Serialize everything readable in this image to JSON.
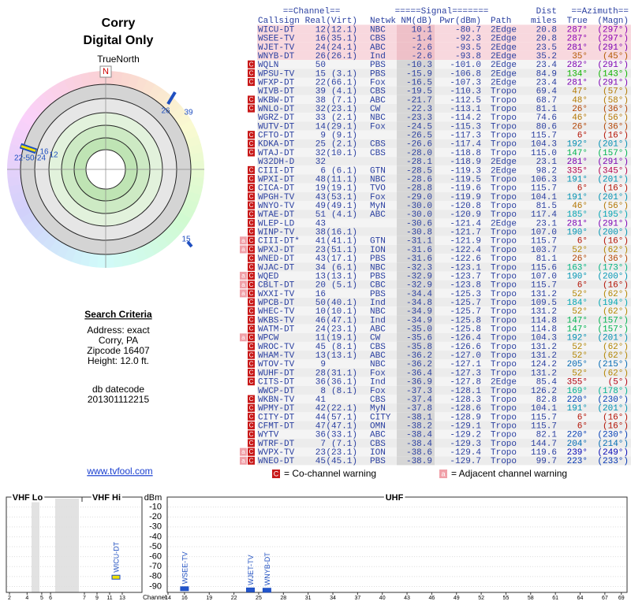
{
  "header": {
    "title": "Corry",
    "subtitle": "Digital Only"
  },
  "polar": {
    "north": "N",
    "true_north": "TrueNorth",
    "labels": [
      "26",
      "39",
      "22-50-24",
      "16",
      "12",
      "15"
    ]
  },
  "criteria": {
    "heading": "Search Criteria",
    "lines": [
      "Address: exact",
      "Corry, PA",
      "Zipcode 16407",
      "Height: 12.0 ft."
    ],
    "datecode_label": "db datecode",
    "datecode": "201301112215"
  },
  "link": "www.tvfool.com",
  "table": {
    "groups": [
      "==Channel==",
      "=====Signal=======",
      "Dist",
      "==Azimuth=="
    ],
    "columns": [
      "Callsign",
      "Real",
      "(Virt)",
      "Netwk",
      "NM(dB)",
      "Pwr(dBm)",
      "Path",
      "miles",
      "True",
      "(Magn)"
    ],
    "rows": [
      [
        "WICU-DT",
        "12",
        "(12.1)",
        "NBC",
        "10.1",
        "-80.7",
        "2Edge",
        "20.8",
        "287°",
        "(297°)"
      ],
      [
        "WSEE-TV",
        "16",
        "(35.1)",
        "CBS",
        "-1.4",
        "-92.3",
        "2Edge",
        "20.8",
        "287°",
        "(297°)"
      ],
      [
        "WJET-TV",
        "24",
        "(24.1)",
        "ABC",
        "-2.6",
        "-93.5",
        "2Edge",
        "23.5",
        "281°",
        "(291°)"
      ],
      [
        "WNYB-DT",
        "26",
        "(26.1)",
        "Ind",
        "-2.6",
        "-93.8",
        "2Edge",
        "35.2",
        "35°",
        "(45°)"
      ],
      [
        "WQLN",
        "50",
        null,
        "PBS",
        "-10.3",
        "-101.0",
        "2Edge",
        "23.4",
        "282°",
        "(291°)"
      ],
      [
        "WPSU-TV",
        "15",
        "(3.1)",
        "PBS",
        "-15.9",
        "-106.8",
        "2Edge",
        "84.9",
        "134°",
        "(143°)"
      ],
      [
        "WFXP-DT",
        "22",
        "(66.1)",
        "Fox",
        "-16.5",
        "-107.3",
        "2Edge",
        "23.4",
        "281°",
        "(291°)"
      ],
      [
        "WIVB-DT",
        "39",
        "(4.1)",
        "CBS",
        "-19.5",
        "-110.3",
        "Tropo",
        "69.4",
        "47°",
        "(57°)"
      ],
      [
        "WKBW-DT",
        "38",
        "(7.1)",
        "ABC",
        "-21.7",
        "-112.5",
        "Tropo",
        "68.7",
        "48°",
        "(58°)"
      ],
      [
        "WNLO-DT",
        "32",
        "(23.1)",
        "CW",
        "-22.3",
        "-113.1",
        "Tropo",
        "81.1",
        "26°",
        "(36°)"
      ],
      [
        "WGRZ-DT",
        "33",
        "(2.1)",
        "NBC",
        "-23.3",
        "-114.2",
        "Tropo",
        "74.6",
        "46°",
        "(56°)"
      ],
      [
        "WUTV-DT",
        "14",
        "(29.1)",
        "Fox",
        "-24.5",
        "-115.3",
        "Tropo",
        "80.6",
        "26°",
        "(36°)"
      ],
      [
        "CFTO-DT",
        "9",
        "(9.1)",
        null,
        "-26.5",
        "-117.3",
        "Tropo",
        "115.7",
        "6°",
        "(16°)"
      ],
      [
        "KDKA-DT",
        "25",
        "(2.1)",
        "CBS",
        "-26.6",
        "-117.4",
        "Tropo",
        "104.3",
        "192°",
        "(201°)"
      ],
      [
        "WTAJ-DT",
        "32",
        "(10.1)",
        "CBS",
        "-28.0",
        "-118.8",
        "Tropo",
        "115.0",
        "147°",
        "(157°)"
      ],
      [
        "W32DH-D",
        "32",
        null,
        null,
        "-28.1",
        "-118.9",
        "2Edge",
        "23.1",
        "281°",
        "(291°)"
      ],
      [
        "CIII-DT",
        "6",
        "(6.1)",
        "GTN",
        "-28.5",
        "-119.3",
        "2Edge",
        "98.2",
        "335°",
        "(345°)"
      ],
      [
        "WPXI-DT",
        "48",
        "(11.1)",
        "NBC",
        "-28.6",
        "-119.5",
        "Tropo",
        "106.3",
        "191°",
        "(201°)"
      ],
      [
        "CICA-DT",
        "19",
        "(19.1)",
        "TVO",
        "-28.8",
        "-119.6",
        "Tropo",
        "115.7",
        "6°",
        "(16°)"
      ],
      [
        "WPGH-TV",
        "43",
        "(53.1)",
        "Fox",
        "-29.0",
        "-119.9",
        "Tropo",
        "104.1",
        "191°",
        "(201°)"
      ],
      [
        "WNYO-TV",
        "49",
        "(49.1)",
        "MyN",
        "-30.0",
        "-120.8",
        "Tropo",
        "81.5",
        "46°",
        "(56°)"
      ],
      [
        "WTAE-DT",
        "51",
        "(4.1)",
        "ABC",
        "-30.0",
        "-120.9",
        "Tropo",
        "117.4",
        "185°",
        "(195°)"
      ],
      [
        "WLEP-LD",
        "43",
        null,
        null,
        "-30.6",
        "-121.4",
        "2Edge",
        "23.1",
        "281°",
        "(291°)"
      ],
      [
        "WINP-TV",
        "38",
        "(16.1)",
        null,
        "-30.8",
        "-121.7",
        "Tropo",
        "107.0",
        "190°",
        "(200°)"
      ],
      [
        "CIII-DT*",
        "41",
        "(41.1)",
        "GTN",
        "-31.1",
        "-121.9",
        "Tropo",
        "115.7",
        "6°",
        "(16°)"
      ],
      [
        "WPXJ-DT",
        "23",
        "(51.1)",
        "ION",
        "-31.6",
        "-122.4",
        "Tropo",
        "103.7",
        "52°",
        "(62°)"
      ],
      [
        "WNED-DT",
        "43",
        "(17.1)",
        "PBS",
        "-31.6",
        "-122.6",
        "Tropo",
        "81.1",
        "26°",
        "(36°)"
      ],
      [
        "WJAC-DT",
        "34",
        "(6.1)",
        "NBC",
        "-32.3",
        "-123.1",
        "Tropo",
        "115.6",
        "163°",
        "(173°)"
      ],
      [
        "WQED",
        "13",
        "(13.1)",
        "PBS",
        "-32.9",
        "-123.7",
        "Tropo",
        "107.0",
        "190°",
        "(200°)"
      ],
      [
        "CBLT-DT",
        "20",
        "(5.1)",
        "CBC",
        "-32.9",
        "-123.8",
        "Tropo",
        "115.7",
        "6°",
        "(16°)"
      ],
      [
        "WXXI-TV",
        "16",
        null,
        "PBS",
        "-34.4",
        "-125.3",
        "Tropo",
        "131.2",
        "52°",
        "(62°)"
      ],
      [
        "WPCB-DT",
        "50",
        "(40.1)",
        "Ind",
        "-34.8",
        "-125.7",
        "Tropo",
        "109.5",
        "184°",
        "(194°)"
      ],
      [
        "WHEC-TV",
        "10",
        "(10.1)",
        "NBC",
        "-34.9",
        "-125.7",
        "Tropo",
        "131.2",
        "52°",
        "(62°)"
      ],
      [
        "WKBS-TV",
        "46",
        "(47.1)",
        "Ind",
        "-34.9",
        "-125.8",
        "Tropo",
        "114.8",
        "147°",
        "(157°)"
      ],
      [
        "WATM-DT",
        "24",
        "(23.1)",
        "ABC",
        "-35.0",
        "-125.8",
        "Tropo",
        "114.8",
        "147°",
        "(157°)"
      ],
      [
        "WPCW",
        "11",
        "(19.1)",
        "CW",
        "-35.6",
        "-126.4",
        "Tropo",
        "104.3",
        "192°",
        "(201°)"
      ],
      [
        "WROC-TV",
        "45",
        "(8.1)",
        "CBS",
        "-35.8",
        "-126.6",
        "Tropo",
        "131.2",
        "52°",
        "(62°)"
      ],
      [
        "WHAM-TV",
        "13",
        "(13.1)",
        "ABC",
        "-36.2",
        "-127.0",
        "Tropo",
        "131.2",
        "52°",
        "(62°)"
      ],
      [
        "WTOV-TV",
        "9",
        null,
        "NBC",
        "-36.2",
        "-127.1",
        "Tropo",
        "124.2",
        "205°",
        "(215°)"
      ],
      [
        "WUHF-DT",
        "28",
        "(31.1)",
        "Fox",
        "-36.4",
        "-127.3",
        "Tropo",
        "131.2",
        "52°",
        "(62°)"
      ],
      [
        "CITS-DT",
        "36",
        "(36.1)",
        "Ind",
        "-36.9",
        "-127.8",
        "2Edge",
        "85.4",
        "355°",
        "(5°)"
      ],
      [
        "WWCP-DT",
        "8",
        "(8.1)",
        "Fox",
        "-37.3",
        "-128.1",
        "Tropo",
        "126.2",
        "169°",
        "(178°)"
      ],
      [
        "WKBN-TV",
        "41",
        null,
        "CBS",
        "-37.4",
        "-128.3",
        "Tropo",
        "82.8",
        "220°",
        "(230°)"
      ],
      [
        "WPMY-DT",
        "42",
        "(22.1)",
        "MyN",
        "-37.8",
        "-128.6",
        "Tropo",
        "104.1",
        "191°",
        "(201°)"
      ],
      [
        "CITY-DT",
        "44",
        "(57.1)",
        "CITY",
        "-38.1",
        "-128.9",
        "Tropo",
        "115.7",
        "6°",
        "(16°)"
      ],
      [
        "CFMT-DT",
        "47",
        "(47.1)",
        "OMN",
        "-38.2",
        "-129.1",
        "Tropo",
        "115.7",
        "6°",
        "(16°)"
      ],
      [
        "WYTV",
        "36",
        "(33.1)",
        "ABC",
        "-38.4",
        "-129.2",
        "Tropo",
        "82.1",
        "220°",
        "(230°)"
      ],
      [
        "WTRF-DT",
        "7",
        "(7.1)",
        "CBS",
        "-38.4",
        "-129.3",
        "Tropo",
        "144.7",
        "204°",
        "(214°)"
      ],
      [
        "WVPX-TV",
        "23",
        "(23.1)",
        "ION",
        "-38.6",
        "-129.4",
        "Tropo",
        "119.6",
        "239°",
        "(249°)"
      ],
      [
        "WNEO-DT",
        "45",
        "(45.1)",
        "PBS",
        "-38.9",
        "-129.7",
        "Tropo",
        "99.7",
        "223°",
        "(233°)"
      ]
    ],
    "warnings": [
      null,
      null,
      null,
      null,
      [
        "C"
      ],
      [
        "C"
      ],
      [
        "C"
      ],
      null,
      [
        "C"
      ],
      [
        "C"
      ],
      null,
      null,
      [
        "C"
      ],
      [
        "C"
      ],
      [
        "C"
      ],
      null,
      [
        "C"
      ],
      [
        "C"
      ],
      [
        "C"
      ],
      [
        "C"
      ],
      [
        "C"
      ],
      [
        "C"
      ],
      [
        "C"
      ],
      [
        "C"
      ],
      [
        "a",
        "C"
      ],
      [
        "a",
        "C"
      ],
      [
        "C"
      ],
      [
        "C"
      ],
      [
        "a",
        "C"
      ],
      [
        "a",
        "C"
      ],
      [
        "a",
        "C"
      ],
      [
        "C"
      ],
      [
        "C"
      ],
      [
        "C"
      ],
      [
        "C"
      ],
      [
        "a",
        "C"
      ],
      [
        "C"
      ],
      [
        "C"
      ],
      [
        "C"
      ],
      [
        "C"
      ],
      [
        "C"
      ],
      null,
      [
        "C"
      ],
      [
        "C"
      ],
      [
        "C"
      ],
      [
        "C"
      ],
      [
        "C"
      ],
      [
        "C"
      ],
      [
        "a",
        "C"
      ],
      [
        "a",
        "C"
      ]
    ]
  },
  "legend": {
    "co_mark": "C",
    "co": "= Co-channel warning",
    "adj_mark": "a",
    "adj": "= Adjacent channel warning"
  },
  "chart_data": {
    "type": "bar",
    "sections": [
      "VHF Lo",
      "VHF Hi",
      "UHF"
    ],
    "y_label": "dBm",
    "x_label": "Channel",
    "ylim": [
      -96,
      0
    ],
    "yticks": [
      -10,
      -20,
      -30,
      -40,
      -50,
      -60,
      -70,
      -80,
      -90
    ],
    "xticks": [
      2,
      4,
      5,
      6,
      7,
      9,
      11,
      13,
      14,
      16,
      19,
      22,
      25,
      28,
      31,
      34,
      37,
      40,
      43,
      46,
      49,
      52,
      55,
      58,
      61,
      64,
      67,
      69
    ],
    "x": [
      12,
      16,
      24,
      26
    ],
    "values": [
      -80.7,
      -92.3,
      -93.5,
      -93.8
    ],
    "labels": [
      "WICU-DT",
      "WSEE-TV",
      "WJET-TV",
      "WNYB-DT"
    ],
    "colors": [
      "#f0e000",
      "#2255cc",
      "#2255cc",
      "#2255cc"
    ]
  }
}
